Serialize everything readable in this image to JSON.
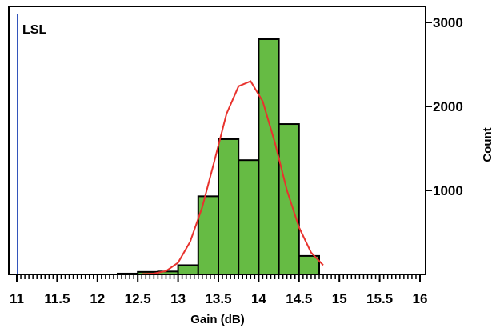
{
  "chart_data": {
    "type": "bar",
    "xlabel": "Gain (dB)",
    "ylabel": "Count",
    "xlim": [
      11,
      16
    ],
    "ylim": [
      0,
      3000
    ],
    "x_ticks": [
      "11",
      "11.5",
      "12",
      "12.5",
      "13",
      "13.5",
      "14",
      "14.5",
      "15",
      "15.5",
      "16"
    ],
    "y_ticks": [
      "1000",
      "2000",
      "3000"
    ],
    "bin_width": 0.25,
    "bins": [
      {
        "x0": 12.25,
        "x1": 12.5,
        "count": 10
      },
      {
        "x0": 12.5,
        "x1": 12.75,
        "count": 30
      },
      {
        "x0": 12.75,
        "x1": 13.0,
        "count": 35
      },
      {
        "x0": 13.0,
        "x1": 13.25,
        "count": 110
      },
      {
        "x0": 13.25,
        "x1": 13.5,
        "count": 930
      },
      {
        "x0": 13.5,
        "x1": 13.75,
        "count": 1610
      },
      {
        "x0": 13.75,
        "x1": 14.0,
        "count": 1360
      },
      {
        "x0": 14.0,
        "x1": 14.25,
        "count": 2800
      },
      {
        "x0": 14.25,
        "x1": 14.5,
        "count": 1790
      },
      {
        "x0": 14.5,
        "x1": 14.75,
        "count": 220
      }
    ],
    "fit_curve": {
      "x": [
        12.55,
        12.7,
        12.85,
        13.0,
        13.15,
        13.3,
        13.45,
        13.6,
        13.75,
        13.9,
        14.05,
        14.2,
        14.35,
        14.5,
        14.65,
        14.8
      ],
      "y": [
        5,
        10,
        40,
        140,
        390,
        800,
        1350,
        1910,
        2240,
        2300,
        2060,
        1570,
        1000,
        560,
        260,
        110
      ]
    },
    "reference_lines": [
      {
        "label": "LSL",
        "x": 11.0
      }
    ],
    "grid": false,
    "colors": {
      "bar_fill": "#66bb44",
      "bar_stroke": "#000000",
      "curve": "#e8322d",
      "lsl_line": "#3355bb"
    }
  }
}
